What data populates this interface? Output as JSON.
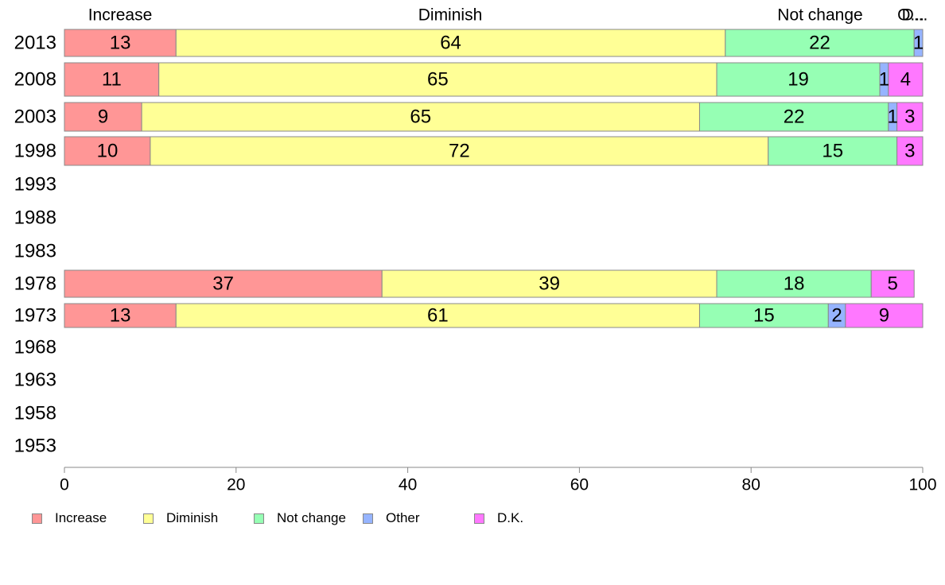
{
  "chart_data": {
    "type": "bar",
    "orientation": "horizontal",
    "stacked": true,
    "categories": [
      "2013",
      "2008",
      "2003",
      "1998",
      "1993",
      "1988",
      "1983",
      "1978",
      "1973",
      "1968",
      "1963",
      "1958",
      "1953"
    ],
    "series": [
      {
        "name": "Increase",
        "color": "#ff9696",
        "values": [
          13,
          11,
          9,
          10,
          null,
          null,
          null,
          37,
          13,
          null,
          null,
          null,
          null
        ]
      },
      {
        "name": "Diminish",
        "color": "#ffff96",
        "values": [
          64,
          65,
          65,
          72,
          null,
          null,
          null,
          39,
          61,
          null,
          null,
          null,
          null
        ]
      },
      {
        "name": "Not change",
        "color": "#96ffb4",
        "values": [
          22,
          19,
          22,
          15,
          null,
          null,
          null,
          18,
          15,
          null,
          null,
          null,
          null
        ]
      },
      {
        "name": "Other",
        "color": "#96b4ff",
        "values": [
          1,
          1,
          1,
          0,
          null,
          null,
          null,
          0,
          2,
          null,
          null,
          null,
          null
        ]
      },
      {
        "name": "D.K.",
        "color": "#ff78ff",
        "values": [
          0,
          4,
          3,
          3,
          null,
          null,
          null,
          5,
          9,
          null,
          null,
          null,
          null
        ]
      }
    ],
    "top_labels": [
      {
        "text": "Increase"
      },
      {
        "text": "Diminish"
      },
      {
        "text": "Not change"
      },
      {
        "text": "O..."
      },
      {
        "text": "D..."
      }
    ],
    "xlim": [
      0,
      100
    ],
    "xticks": [
      0,
      20,
      40,
      60,
      80,
      100
    ],
    "xticklabels": [
      "0",
      "20",
      "40",
      "60",
      "80",
      "100"
    ],
    "grid": false,
    "legend_position": "bottom-left"
  }
}
